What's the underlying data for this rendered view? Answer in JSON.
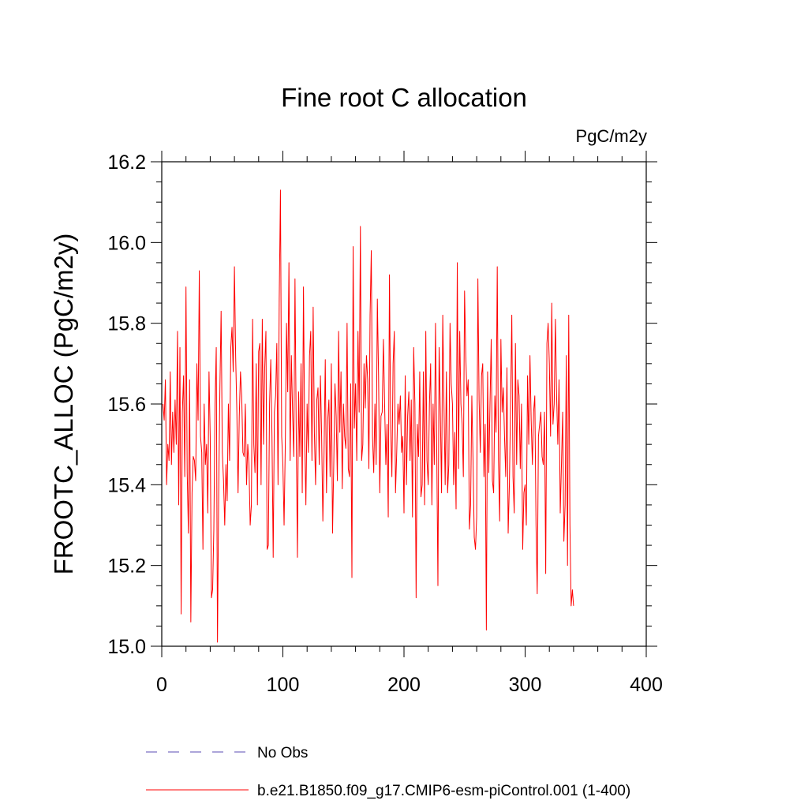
{
  "chart_data": {
    "type": "line",
    "title": "Fine root C allocation",
    "units": "PgC/m2y",
    "xlabel": "",
    "ylabel": "FROOTC_ALLOC  (PgC/m2y)",
    "xlim": [
      0,
      400
    ],
    "ylim": [
      15.0,
      16.2
    ],
    "x_ticks": [
      0,
      100,
      200,
      300,
      400
    ],
    "x_tick_labels": [
      "0",
      "100",
      "200",
      "300",
      "400"
    ],
    "y_ticks": [
      15.0,
      15.2,
      15.4,
      15.6,
      15.8,
      16.0,
      16.2
    ],
    "y_tick_labels": [
      "15.0",
      "15.2",
      "15.4",
      "15.6",
      "15.8",
      "16.0",
      "16.2"
    ],
    "grid": false,
    "legend_position": "bottom-left",
    "series": [
      {
        "name": "b.e21.B1850.f09_g17.CMIP6-esm-piControl.001 (1-400)",
        "color": "#ff0000",
        "style": "solid",
        "x_start": 1,
        "values": [
          15.6,
          15.56,
          15.66,
          15.4,
          15.5,
          15.46,
          15.68,
          15.45,
          15.58,
          15.48,
          15.61,
          15.5,
          15.78,
          15.35,
          15.74,
          15.08,
          15.58,
          15.67,
          15.42,
          15.89,
          15.43,
          15.28,
          15.66,
          15.06,
          15.38,
          15.47,
          15.46,
          15.41,
          15.7,
          15.56,
          15.93,
          15.52,
          15.48,
          15.24,
          15.6,
          15.45,
          15.5,
          15.33,
          15.68,
          15.52,
          15.12,
          15.14,
          15.29,
          15.6,
          15.74,
          15.01,
          15.38,
          15.64,
          15.83,
          15.48,
          15.41,
          15.3,
          15.45,
          15.36,
          15.6,
          15.46,
          15.74,
          15.79,
          15.68,
          15.94,
          15.72,
          15.58,
          15.38,
          15.57,
          15.68,
          15.62,
          15.48,
          15.47,
          15.6,
          15.4,
          15.5,
          15.45,
          15.3,
          15.35,
          15.81,
          15.5,
          15.43,
          15.7,
          15.35,
          15.73,
          15.75,
          15.4,
          15.81,
          15.5,
          15.69,
          15.78,
          15.24,
          15.25,
          15.6,
          15.71,
          15.52,
          15.22,
          15.58,
          15.62,
          15.75,
          15.4,
          15.86,
          16.13,
          15.52,
          15.45,
          15.3,
          15.5,
          15.8,
          15.63,
          15.95,
          15.46,
          15.72,
          15.58,
          15.47,
          15.91,
          15.54,
          15.22,
          15.63,
          15.47,
          15.7,
          15.38,
          15.89,
          15.52,
          15.35,
          15.6,
          15.48,
          15.72,
          15.78,
          15.46,
          15.84,
          15.53,
          15.4,
          15.61,
          15.64,
          15.45,
          15.67,
          15.52,
          15.31,
          15.48,
          15.71,
          15.38,
          15.56,
          15.61,
          15.42,
          15.7,
          15.28,
          15.45,
          15.65,
          15.57,
          15.41,
          15.78,
          15.53,
          15.68,
          15.39,
          15.6,
          15.52,
          15.49,
          15.8,
          15.44,
          15.42,
          15.65,
          15.17,
          15.99,
          15.54,
          15.65,
          15.46,
          15.78,
          15.58,
          16.04,
          15.46,
          15.5,
          15.7,
          15.59,
          15.72,
          15.66,
          15.44,
          15.82,
          15.98,
          15.52,
          15.43,
          15.6,
          15.45,
          15.86,
          15.67,
          15.38,
          15.57,
          15.58,
          15.76,
          15.6,
          15.45,
          15.55,
          15.32,
          15.92,
          15.54,
          15.42,
          15.7,
          15.78,
          15.38,
          15.48,
          15.6,
          15.55,
          15.62,
          15.48,
          15.52,
          15.33,
          15.67,
          15.4,
          15.57,
          15.63,
          15.46,
          15.61,
          15.32,
          15.74,
          15.6,
          15.12,
          15.55,
          15.47,
          15.68,
          15.37,
          15.4,
          15.68,
          15.35,
          15.78,
          15.46,
          15.4,
          15.6,
          15.7,
          15.35,
          15.6,
          15.45,
          15.8,
          15.5,
          15.15,
          15.74,
          15.58,
          15.38,
          15.82,
          15.6,
          15.4,
          15.68,
          15.38,
          15.45,
          15.8,
          15.65,
          15.6,
          15.4,
          15.53,
          15.34,
          15.95,
          15.44,
          15.78,
          15.6,
          15.55,
          15.42,
          15.88,
          15.72,
          15.62,
          15.66,
          15.29,
          15.35,
          15.62,
          15.46,
          15.27,
          15.24,
          15.32,
          15.91,
          15.61,
          15.48,
          15.67,
          15.7,
          15.42,
          15.55,
          15.04,
          15.68,
          15.43,
          15.6,
          15.76,
          15.41,
          15.38,
          15.62,
          15.53,
          15.94,
          15.46,
          15.31,
          15.76,
          15.58,
          15.64,
          15.52,
          15.42,
          15.69,
          15.28,
          15.4,
          15.6,
          15.82,
          15.42,
          15.33,
          15.75,
          15.45,
          15.66,
          15.62,
          15.44,
          15.6,
          15.24,
          15.38,
          15.4,
          15.3,
          15.67,
          15.5,
          15.72,
          15.56,
          15.45,
          15.58,
          15.62,
          15.3,
          15.13,
          15.52,
          15.55,
          15.58,
          15.47,
          15.45,
          15.58,
          15.18,
          15.75,
          15.8,
          15.7,
          15.52,
          15.85,
          15.55,
          15.6,
          15.81,
          15.62,
          15.5,
          15.66,
          15.33,
          15.45,
          15.58,
          15.26,
          15.35,
          15.72,
          15.2,
          15.82,
          15.3,
          15.1,
          15.14,
          15.1
        ]
      }
    ],
    "legend": [
      {
        "label": "No Obs",
        "color": "#7b6fc4",
        "style": "dashed"
      },
      {
        "label": "b.e21.B1850.f09_g17.CMIP6-esm-piControl.001 (1-400)",
        "color": "#ff0000",
        "style": "solid"
      }
    ]
  }
}
